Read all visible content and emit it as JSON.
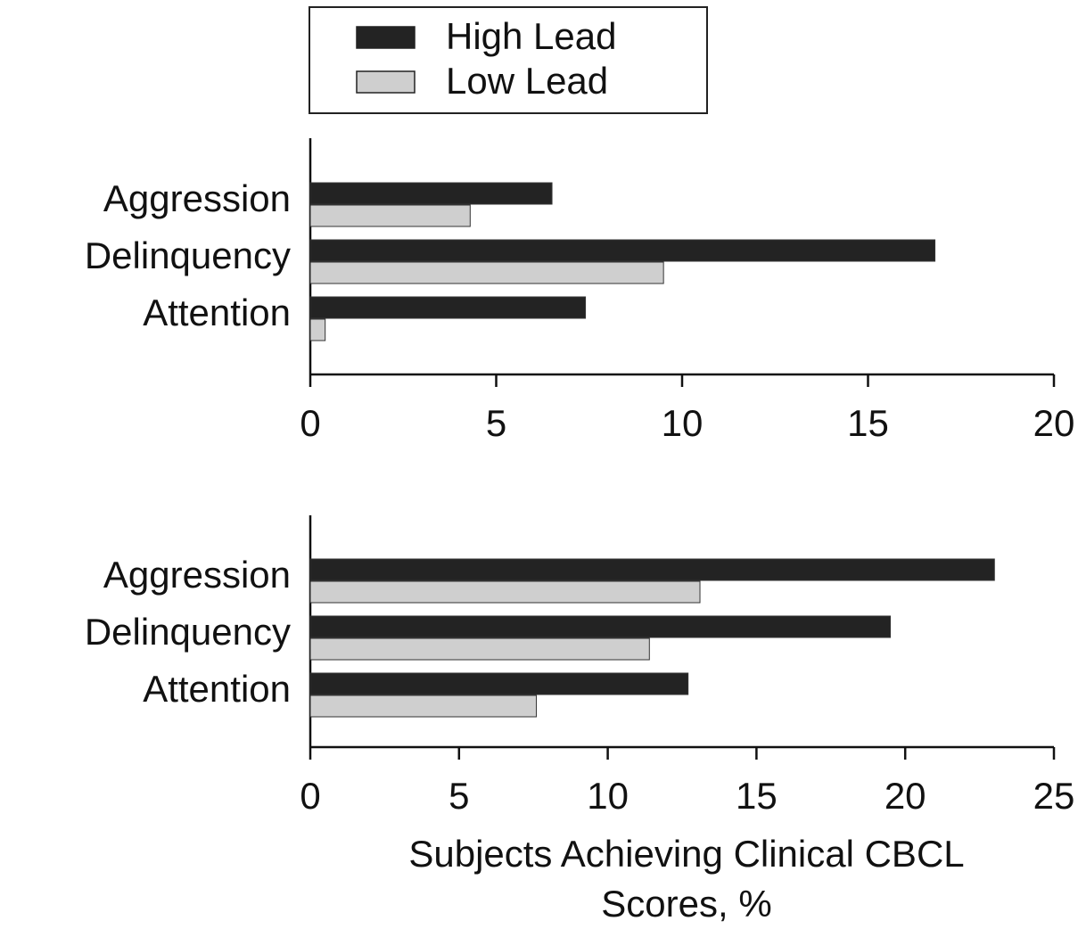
{
  "chart_data": [
    {
      "type": "barh",
      "categories": [
        "Aggression",
        "Delinquency",
        "Attention"
      ],
      "series": [
        {
          "name": "High Lead",
          "color": "#232323",
          "values": [
            6.5,
            16.8,
            7.4
          ]
        },
        {
          "name": "Low Lead",
          "color": "#cfcfcf",
          "values": [
            4.3,
            9.5,
            0.4
          ]
        }
      ],
      "xlim": [
        0,
        20
      ],
      "xticks": [
        0,
        5,
        10,
        15,
        20
      ]
    },
    {
      "type": "barh",
      "categories": [
        "Aggression",
        "Delinquency",
        "Attention"
      ],
      "series": [
        {
          "color": "#232323",
          "values": [
            23.0,
            19.5,
            12.7
          ]
        },
        {
          "color": "#cfcfcf",
          "values": [
            13.1,
            11.4,
            7.6
          ]
        }
      ],
      "xlim": [
        0,
        25
      ],
      "xticks": [
        0,
        5,
        10,
        15,
        20,
        25
      ],
      "xlabel": "Subjects Achieving Clinical CBCL Scores, %"
    }
  ]
}
